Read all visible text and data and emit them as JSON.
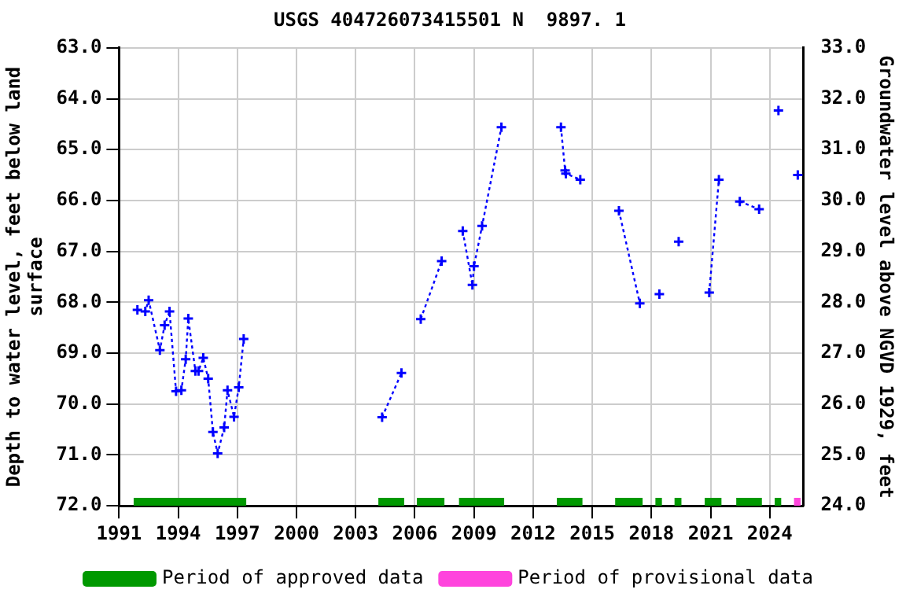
{
  "chart_data": {
    "type": "line",
    "title": "USGS 404726073415501 N  9897. 1",
    "ylabel": "Depth to water level, feet below land surface",
    "y2label": "Groundwater level above NGVD 1929, feet",
    "series": [
      {
        "color": "#0000ff",
        "x": [
          1991.93,
          1992.33,
          1992.5,
          1993.07,
          1993.31,
          1993.56,
          1993.89,
          1994.16,
          1994.38,
          1994.51,
          1994.87,
          1995.03,
          1995.27,
          1995.52,
          1995.76,
          1996.0,
          1996.33,
          1996.5,
          1996.83,
          1997.07,
          1997.32,
          2000,
          2004.34,
          2005.32,
          2005.8,
          2006.3,
          2007.36,
          2007.9,
          2008.43,
          2008.92,
          2009.0,
          2009.41,
          2010.39,
          2012,
          2013.41,
          2013.62,
          2013.66,
          2014.39,
          2015.4,
          2016.35,
          2017.41,
          2017.9,
          2018.4,
          2018.9,
          2019.38,
          2020.2,
          2020.93,
          2021.42,
          2022.0,
          2022.48,
          2023.46,
          2024.0,
          2024.44,
          2024.9,
          2025.42
        ],
        "values": [
          68.15,
          68.18,
          67.96,
          68.94,
          68.45,
          68.18,
          69.75,
          69.73,
          69.12,
          68.32,
          69.35,
          69.35,
          69.09,
          69.5,
          70.55,
          70.97,
          70.46,
          69.73,
          70.25,
          69.67,
          68.72,
          null,
          70.26,
          69.39,
          null,
          68.33,
          67.19,
          null,
          66.6,
          67.66,
          67.29,
          66.5,
          64.56,
          null,
          64.56,
          65.41,
          65.47,
          65.59,
          null,
          66.2,
          68.02,
          null,
          67.84,
          null,
          66.81,
          null,
          67.81,
          65.59,
          null,
          66.02,
          66.17,
          null,
          64.23,
          null,
          65.5
        ]
      },
      {
        "name": "Period of approved data",
        "color": "#009900",
        "marker": "none",
        "line_style": "solid",
        "x": [
          1991.74,
          1997.45,
          2000,
          2004.15,
          2005.46,
          2005.8,
          2006.1,
          2007.5,
          2007.9,
          2008.24,
          2010.53,
          2012,
          2013.2,
          2014.5,
          2015.4,
          2016.16,
          2017.55,
          2017.9,
          2018.2,
          2018.53,
          2018.9,
          2019.17,
          2019.52,
          2020.2,
          2020.7,
          2021.55,
          2022.0,
          2022.3,
          2023.6,
          2024.0,
          2024.25,
          2024.58
        ],
        "values": [
          71.92,
          71.92,
          null,
          71.92,
          71.92,
          null,
          71.92,
          71.92,
          null,
          71.92,
          71.92,
          null,
          71.92,
          71.92,
          null,
          71.92,
          71.92,
          null,
          71.92,
          71.92,
          null,
          71.92,
          71.92,
          null,
          71.92,
          71.92,
          null,
          71.92,
          71.92,
          null,
          71.92,
          71.92
        ]
      },
      {
        "name": "Period of provisional data",
        "color": "#ff44dd",
        "marker": "none",
        "line_style": "solid",
        "x": [
          2025.23,
          2025.56
        ],
        "values": [
          71.92,
          71.92
        ]
      }
    ],
    "xlim": [
      1991,
      2025.7
    ],
    "xticks": [
      1991,
      1994,
      1997,
      2000,
      2003,
      2006,
      2009,
      2012,
      2015,
      2018,
      2021,
      2024
    ],
    "ylim": [
      72,
      63
    ],
    "yticks": [
      {
        "value": 63,
        "label": "63.0"
      },
      {
        "value": 64,
        "label": "64.0"
      },
      {
        "value": 65,
        "label": "65.0"
      },
      {
        "value": 66,
        "label": "66.0"
      },
      {
        "value": 67,
        "label": "67.0"
      },
      {
        "value": 68,
        "label": "68.0"
      },
      {
        "value": 69,
        "label": "69.0"
      },
      {
        "value": 70,
        "label": "70.0"
      },
      {
        "value": 71,
        "label": "71.0"
      },
      {
        "value": 72,
        "label": "72.0"
      }
    ],
    "y2lim": [
      24,
      33
    ],
    "y2ticks": [
      {
        "value": 24,
        "label": "24.0"
      },
      {
        "value": 25,
        "label": "25.0"
      },
      {
        "value": 26,
        "label": "26.0"
      },
      {
        "value": 27,
        "label": "27.0"
      },
      {
        "value": 28,
        "label": "28.0"
      },
      {
        "value": 29,
        "label": "29.0"
      },
      {
        "value": 30,
        "label": "30.0"
      },
      {
        "value": 31,
        "label": "31.0"
      },
      {
        "value": 32,
        "label": "32.0"
      },
      {
        "value": 33,
        "label": "33.0"
      }
    ],
    "grid": true,
    "marker": "cross",
    "line_style": "dotted",
    "legend": "bottom"
  }
}
